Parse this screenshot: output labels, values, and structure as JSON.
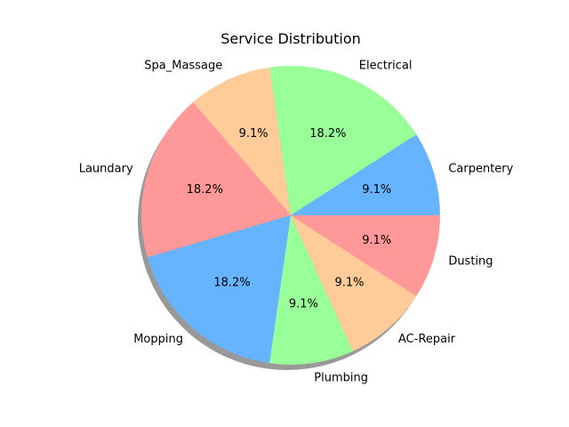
{
  "chart_data": {
    "type": "pie",
    "title": "Service Distribution",
    "categories": [
      "Carpentery",
      "Electrical",
      "Spa_Massage",
      "Laundary",
      "Mopping",
      "Plumbing",
      "AC-Repair",
      "Dusting"
    ],
    "values": [
      1,
      2,
      1,
      2,
      2,
      1,
      1,
      1
    ],
    "percent_labels": [
      "9.1%",
      "18.2%",
      "9.1%",
      "18.2%",
      "18.2%",
      "9.1%",
      "9.1%",
      "9.1%"
    ],
    "colors": [
      "#66b3ff",
      "#99ff99",
      "#ffcc99",
      "#ff9999",
      "#66b3ff",
      "#99ff99",
      "#ffcc99",
      "#ff9999"
    ],
    "start_angle_deg": 0,
    "direction": "counterclockwise",
    "shadow": true,
    "legend": "none"
  }
}
